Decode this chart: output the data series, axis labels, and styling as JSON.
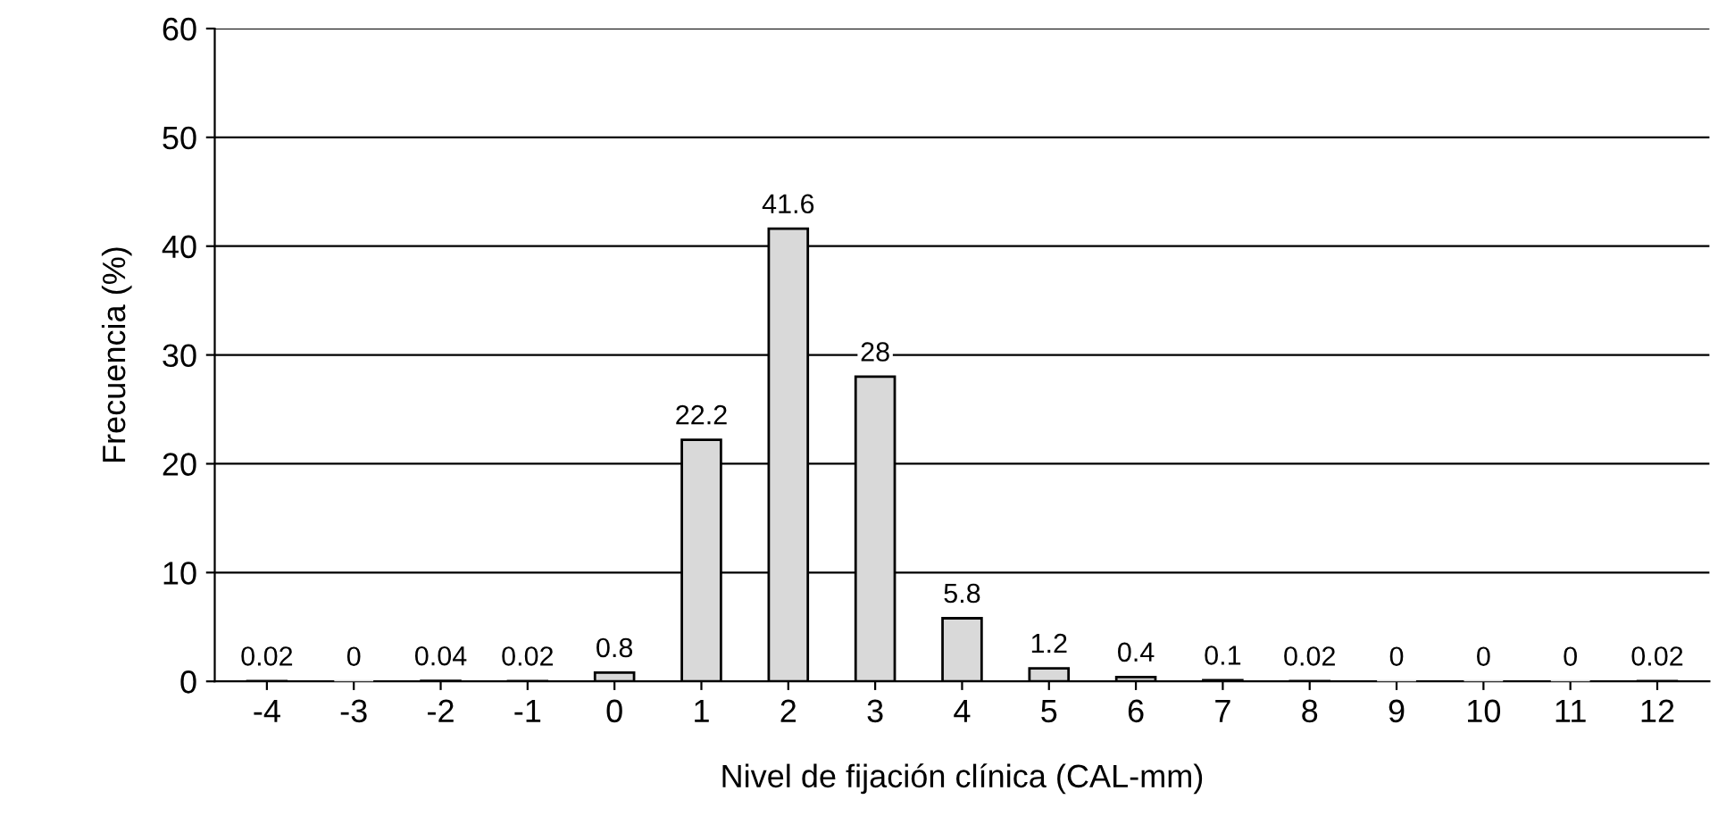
{
  "chart_data": {
    "type": "bar",
    "xlabel": "Nivel de fijación clínica (CAL-mm)",
    "ylabel": "Frecuencia (%)",
    "categories": [
      "-4",
      "-3",
      "-2",
      "-1",
      "0",
      "1",
      "2",
      "3",
      "4",
      "5",
      "6",
      "7",
      "8",
      "9",
      "10",
      "11",
      "12"
    ],
    "values": [
      0.02,
      0,
      0.04,
      0.02,
      0.8,
      22.2,
      41.6,
      28,
      5.8,
      1.2,
      0.4,
      0.1,
      0.02,
      0,
      0,
      0,
      0.02
    ],
    "color": "#d9d9d9",
    "ylim": [
      0,
      60
    ],
    "yticks": [
      0,
      10,
      20,
      30,
      40,
      50,
      60
    ],
    "grid": "y",
    "data_labels": true,
    "legend": false
  }
}
